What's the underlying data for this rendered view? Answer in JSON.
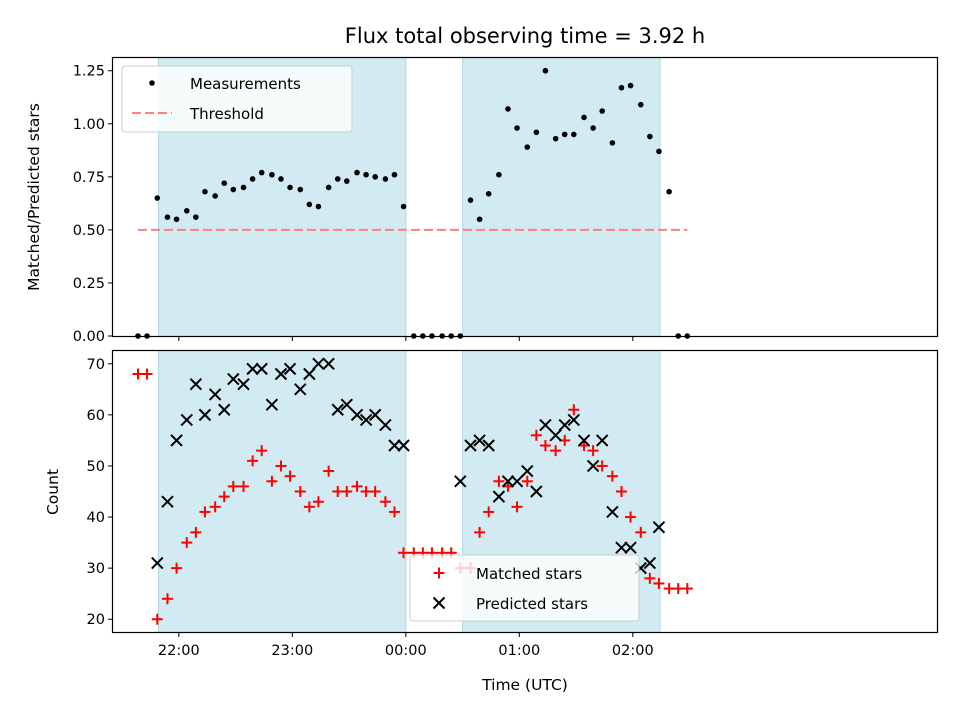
{
  "chart_data": {
    "title": "Flux total observing time = 3.92 h",
    "xlabel": "Time (UTC)",
    "x_ticks": [
      "22:00",
      "23:00",
      "00:00",
      "01:00",
      "02:00"
    ],
    "x_tick_hours": [
      22,
      23,
      24,
      25,
      26
    ],
    "xlim_hours": [
      21.42,
      28.68
    ],
    "shaded_spans_hours": [
      [
        21.82,
        24.0
      ],
      [
        24.5,
        26.24
      ]
    ],
    "panels": [
      {
        "type": "scatter",
        "ylabel": "Matched/Predicted stars",
        "ylim": [
          0,
          1.31
        ],
        "y_ticks": [
          "0.00",
          "0.25",
          "0.50",
          "0.75",
          "1.00",
          "1.25"
        ],
        "y_tick_values": [
          0,
          0.25,
          0.5,
          0.75,
          1.0,
          1.25
        ],
        "legend_position": "upper-left",
        "threshold": {
          "name": "Threshold",
          "value": 0.5,
          "x_range_hours": [
            21.64,
            26.48
          ],
          "color": "#ff7f7f"
        },
        "series": [
          {
            "name": "Measurements",
            "marker": "dot",
            "color": "#000000",
            "x_hours": [
              21.64,
              21.72,
              21.81,
              21.9,
              21.98,
              22.07,
              22.15,
              22.23,
              22.32,
              22.4,
              22.48,
              22.57,
              22.65,
              22.73,
              22.82,
              22.9,
              22.98,
              23.07,
              23.15,
              23.23,
              23.32,
              23.4,
              23.48,
              23.57,
              23.65,
              23.73,
              23.82,
              23.9,
              23.98,
              24.07,
              24.15,
              24.23,
              24.32,
              24.4,
              24.48,
              24.57,
              24.65,
              24.73,
              24.82,
              24.9,
              24.98,
              25.07,
              25.15,
              25.23,
              25.32,
              25.4,
              25.48,
              25.57,
              25.65,
              25.73,
              25.82,
              25.9,
              25.98,
              26.07,
              26.15,
              26.23,
              26.32,
              26.4,
              26.48
            ],
            "values": [
              0.0,
              0.0,
              0.65,
              0.56,
              0.55,
              0.59,
              0.56,
              0.68,
              0.66,
              0.72,
              0.69,
              0.7,
              0.74,
              0.77,
              0.76,
              0.74,
              0.7,
              0.69,
              0.62,
              0.61,
              0.7,
              0.74,
              0.73,
              0.77,
              0.76,
              0.75,
              0.74,
              0.76,
              0.61,
              0.0,
              0.0,
              0.0,
              0.0,
              0.0,
              0.0,
              0.64,
              0.55,
              0.67,
              0.76,
              1.07,
              0.98,
              0.89,
              0.96,
              1.25,
              0.93,
              0.95,
              0.95,
              1.03,
              0.98,
              1.06,
              0.91,
              1.17,
              1.18,
              1.09,
              0.94,
              0.87,
              0.68,
              0.0,
              0.0
            ]
          }
        ]
      },
      {
        "type": "scatter",
        "ylabel": "Count",
        "ylim": [
          17.5,
          72.5
        ],
        "y_ticks": [
          "20",
          "30",
          "40",
          "50",
          "60",
          "70"
        ],
        "y_tick_values": [
          20,
          30,
          40,
          50,
          60,
          70
        ],
        "legend_position": "lower-center",
        "series": [
          {
            "name": "Matched stars",
            "marker": "plus",
            "color": "#ff0000",
            "x_hours": [
              21.64,
              21.72,
              21.81,
              21.9,
              21.98,
              22.07,
              22.15,
              22.23,
              22.32,
              22.4,
              22.48,
              22.57,
              22.65,
              22.73,
              22.82,
              22.9,
              22.98,
              23.07,
              23.15,
              23.23,
              23.32,
              23.4,
              23.48,
              23.57,
              23.65,
              23.73,
              23.82,
              23.9,
              23.98,
              24.07,
              24.15,
              24.23,
              24.32,
              24.4,
              24.48,
              24.57,
              24.65,
              24.73,
              24.82,
              24.9,
              24.98,
              25.07,
              25.15,
              25.23,
              25.32,
              25.4,
              25.48,
              25.57,
              25.65,
              25.73,
              25.82,
              25.9,
              25.98,
              26.07,
              26.15,
              26.23,
              26.32,
              26.4,
              26.48
            ],
            "values": [
              68,
              68,
              20,
              24,
              30,
              35,
              37,
              41,
              42,
              44,
              46,
              46,
              51,
              53,
              47,
              50,
              48,
              45,
              42,
              43,
              49,
              45,
              45,
              46,
              45,
              45,
              43,
              41,
              33,
              33,
              33,
              33,
              33,
              33,
              30,
              30,
              37,
              41,
              47,
              46,
              42,
              47,
              56,
              54,
              53,
              55,
              61,
              54,
              53,
              50,
              48,
              45,
              40,
              37,
              28,
              27,
              26,
              26,
              26
            ]
          },
          {
            "name": "Predicted stars",
            "marker": "cross",
            "color": "#000000",
            "x_hours": [
              21.81,
              21.9,
              21.98,
              22.07,
              22.15,
              22.23,
              22.32,
              22.4,
              22.48,
              22.57,
              22.65,
              22.73,
              22.82,
              22.9,
              22.98,
              23.07,
              23.15,
              23.23,
              23.32,
              23.4,
              23.48,
              23.57,
              23.65,
              23.73,
              23.82,
              23.9,
              23.98,
              24.48,
              24.57,
              24.65,
              24.73,
              24.82,
              24.9,
              24.98,
              25.07,
              25.15,
              25.23,
              25.32,
              25.4,
              25.48,
              25.57,
              25.65,
              25.73,
              25.82,
              25.9,
              25.98,
              26.07,
              26.15,
              26.23
            ],
            "values": [
              31,
              43,
              55,
              59,
              66,
              60,
              64,
              61,
              67,
              66,
              69,
              69,
              62,
              68,
              69,
              65,
              68,
              70,
              70,
              61,
              62,
              60,
              59,
              60,
              58,
              54,
              54,
              47,
              54,
              55,
              54,
              44,
              47,
              47,
              49,
              45,
              58,
              56,
              58,
              59,
              55,
              50,
              55,
              41,
              34,
              34,
              30,
              31,
              38
            ]
          }
        ]
      }
    ]
  },
  "colors": {
    "shade": "#add8e6",
    "threshold": "#ff7f7f",
    "matched": "#ff0000",
    "predicted": "#000000",
    "measurements": "#000000"
  }
}
